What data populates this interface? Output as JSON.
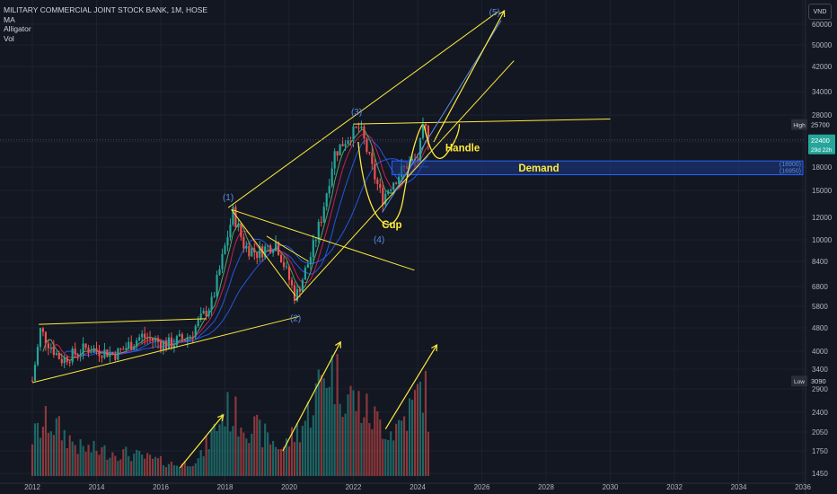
{
  "legend": {
    "title": "MILITARY COMMERCIAL JOINT STOCK BANK, 1M, HOSE",
    "indicators": [
      "MA",
      "Alligator",
      "Vol"
    ]
  },
  "currency_label": "VND",
  "colors": {
    "background": "#131722",
    "up": "#26a69a",
    "down": "#ef5350",
    "drawing": "#ffeb3b",
    "wave_label": "#5b8de6",
    "demand_zone": "#1e3a8a",
    "alligator_jaw": "#2962ff",
    "alligator_teeth": "#e91e63",
    "alligator_lips": "#66bb6a",
    "ma": "#2962ff"
  },
  "chart_data": {
    "type": "candlestick",
    "title": "MILITARY COMMERCIAL JOINT STOCK BANK, 1M, HOSE",
    "y_scale": "log",
    "ylim": [
      1400,
      90000
    ],
    "y_ticks": [
      1450,
      1750,
      2050,
      2400,
      2900,
      3400,
      4000,
      4800,
      5800,
      6800,
      8400,
      10000,
      12000,
      15000,
      18000,
      22000,
      28000,
      34000,
      42000,
      50000,
      60000
    ],
    "x_ticks": [
      "2012",
      "2014",
      "2016",
      "2018",
      "2020",
      "2022",
      "2024",
      "2026",
      "2028",
      "2030",
      "2032",
      "2034",
      "2036"
    ],
    "xlim": [
      2012.0,
      2036.0
    ],
    "price_labels": [
      {
        "label": "High",
        "value": "25700"
      },
      {
        "label": "",
        "value": "22400",
        "sub": "29d 22h"
      },
      {
        "label": "Low",
        "value": "3090"
      }
    ],
    "price_keypoints": [
      {
        "t": 2012.0,
        "p": 3100
      },
      {
        "t": 2012.25,
        "p": 4700
      },
      {
        "t": 2012.9,
        "p": 3700
      },
      {
        "t": 2013.7,
        "p": 4100
      },
      {
        "t": 2014.6,
        "p": 3900
      },
      {
        "t": 2015.4,
        "p": 4500
      },
      {
        "t": 2016.2,
        "p": 4200
      },
      {
        "t": 2016.9,
        "p": 4500
      },
      {
        "t": 2017.6,
        "p": 6000
      },
      {
        "t": 2018.25,
        "p": 12500
      },
      {
        "t": 2018.6,
        "p": 9500
      },
      {
        "t": 2019.0,
        "p": 9000
      },
      {
        "t": 2019.6,
        "p": 9800
      },
      {
        "t": 2020.2,
        "p": 6200
      },
      {
        "t": 2020.7,
        "p": 9000
      },
      {
        "t": 2021.0,
        "p": 12000
      },
      {
        "t": 2021.4,
        "p": 20000
      },
      {
        "t": 2021.9,
        "p": 23500
      },
      {
        "t": 2022.2,
        "p": 25000
      },
      {
        "t": 2022.6,
        "p": 17500
      },
      {
        "t": 2022.9,
        "p": 14000
      },
      {
        "t": 2023.2,
        "p": 16000
      },
      {
        "t": 2023.7,
        "p": 18500
      },
      {
        "t": 2024.0,
        "p": 19000
      },
      {
        "t": 2024.2,
        "p": 25700
      },
      {
        "t": 2024.35,
        "p": 22400
      }
    ],
    "volume_keypoints": [
      {
        "t": 2012.0,
        "v": 0.35
      },
      {
        "t": 2012.5,
        "v": 0.5
      },
      {
        "t": 2013.5,
        "v": 0.25
      },
      {
        "t": 2015.0,
        "v": 0.2
      },
      {
        "t": 2016.5,
        "v": 0.1
      },
      {
        "t": 2017.2,
        "v": 0.15
      },
      {
        "t": 2018.0,
        "v": 0.6
      },
      {
        "t": 2018.8,
        "v": 0.45
      },
      {
        "t": 2019.8,
        "v": 0.25
      },
      {
        "t": 2020.5,
        "v": 0.5
      },
      {
        "t": 2021.2,
        "v": 1.0
      },
      {
        "t": 2021.8,
        "v": 0.75
      },
      {
        "t": 2022.5,
        "v": 0.55
      },
      {
        "t": 2023.2,
        "v": 0.4
      },
      {
        "t": 2023.8,
        "v": 0.6
      },
      {
        "t": 2024.2,
        "v": 0.85
      },
      {
        "t": 2024.35,
        "v": 0.5
      }
    ],
    "zones": [
      {
        "name": "Demand",
        "top": "18900",
        "bottom": "16950",
        "top_value": 18900,
        "bottom_value": 16950,
        "from": 2023.2,
        "to": 2036.0
      }
    ],
    "wave_labels": [
      {
        "label": "(1)",
        "t": 2018.1,
        "p": 13800
      },
      {
        "label": "(2)",
        "t": 2020.2,
        "p": 5100
      },
      {
        "label": "(3)",
        "t": 2022.1,
        "p": 28000
      },
      {
        "label": "(4)",
        "t": 2022.8,
        "p": 9800
      },
      {
        "label": "(5)",
        "t": 2026.4,
        "p": 65000
      }
    ],
    "annotations": [
      {
        "text": "Cup",
        "t": 2023.2,
        "p": 11000
      },
      {
        "text": "Handle",
        "t": 2025.4,
        "p": 20400
      }
    ],
    "lines": [
      {
        "t1": 2012.0,
        "p1": 3050,
        "t2": 2020.3,
        "p2": 5300
      },
      {
        "t1": 2012.2,
        "p1": 4950,
        "t2": 2017.4,
        "p2": 5200
      },
      {
        "t1": 2018.2,
        "p1": 12800,
        "t2": 2023.9,
        "p2": 7800
      },
      {
        "t1": 2018.2,
        "p1": 12800,
        "t2": 2020.2,
        "p2": 6300
      },
      {
        "t1": 2019.3,
        "p1": 10300,
        "t2": 2020.6,
        "p2": 8400
      },
      {
        "t1": 2018.1,
        "p1": 13000,
        "t2": 2026.5,
        "p2": 67000
      },
      {
        "t1": 2020.2,
        "p1": 6100,
        "t2": 2027.0,
        "p2": 44000
      },
      {
        "t1": 2022.0,
        "p1": 25800,
        "t2": 2030.0,
        "p2": 27000
      }
    ],
    "arrows": [
      {
        "t1": 2016.6,
        "p1": 1520,
        "t2": 2017.95,
        "p2": 2350,
        "pane": "volume"
      },
      {
        "t1": 2019.8,
        "p1": 1750,
        "t2": 2021.6,
        "p2": 4300,
        "pane": "volume"
      },
      {
        "t1": 2023.0,
        "p1": 2100,
        "t2": 2024.6,
        "p2": 4200,
        "pane": "volume"
      },
      {
        "t1": 2024.5,
        "p1": 22000,
        "t2": 2026.7,
        "p2": 80000,
        "pane": "price"
      }
    ]
  }
}
